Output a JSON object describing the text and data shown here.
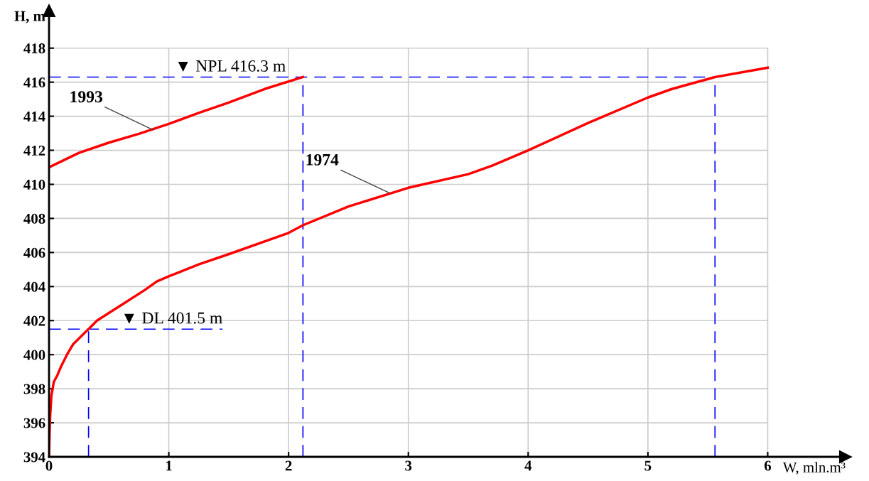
{
  "chart_data": {
    "type": "line",
    "xlabel": "W, mln.m³",
    "ylabel": "H, m",
    "xlim": [
      0,
      6.65
    ],
    "ylim": [
      394,
      420.2
    ],
    "xticks": [
      0,
      1,
      2,
      3,
      4,
      5,
      6
    ],
    "yticks": [
      394,
      396,
      398,
      400,
      402,
      404,
      406,
      408,
      410,
      412,
      414,
      416,
      418
    ],
    "grid": true,
    "legend": false,
    "marker": "none",
    "line_style": "solid",
    "series": [
      {
        "color": "#ff0000",
        "x": [
          0,
          0.25,
          0.5,
          0.75,
          1,
          1.25,
          1.5,
          1.8,
          2.12
        ],
        "values": [
          411,
          411.85,
          412.45,
          412.97,
          413.55,
          414.2,
          414.8,
          415.6,
          416.3
        ]
      },
      {
        "color": "#ff0000",
        "x": [
          0,
          0.005,
          0.01,
          0.02,
          0.04,
          0.07,
          0.1,
          0.15,
          0.2,
          0.3,
          0.33,
          0.4,
          0.6,
          0.8,
          0.9,
          1,
          1.25,
          1.5,
          2,
          2.12,
          2.5,
          3,
          3.5,
          3.7,
          4,
          4.5,
          5,
          5.2,
          5.56,
          6
        ],
        "values": [
          394,
          395.5,
          396.5,
          397.6,
          398.4,
          398.8,
          399.3,
          400,
          400.6,
          401.3,
          401.5,
          402,
          402.9,
          403.8,
          404.3,
          404.6,
          405.3,
          405.9,
          407.15,
          407.6,
          408.7,
          409.8,
          410.6,
          411.1,
          412,
          413.6,
          415.1,
          415.6,
          416.3,
          416.85
        ]
      }
    ],
    "ref_lines": [
      {
        "axis": "y",
        "value": 416.3,
        "label": "▼ NPL 416.3 m",
        "color": "#0000ff",
        "line_style": "dashed"
      },
      {
        "axis": "y",
        "value": 401.5,
        "label": "▼ DL 401.5 m",
        "color": "#0000ff",
        "line_style": "dashed"
      },
      {
        "axis": "x",
        "value": 0.33,
        "color": "#0000ff",
        "line_style": "dashed"
      },
      {
        "axis": "x",
        "value": 2.12,
        "color": "#0000ff",
        "line_style": "dashed"
      },
      {
        "axis": "x",
        "value": 5.56,
        "color": "#0000ff",
        "line_style": "dashed"
      }
    ],
    "annotations": [
      {
        "text": "1993",
        "x": 0.87,
        "y": 413.2
      },
      {
        "text": "1974",
        "x": 2.84,
        "y": 409.5
      }
    ]
  }
}
